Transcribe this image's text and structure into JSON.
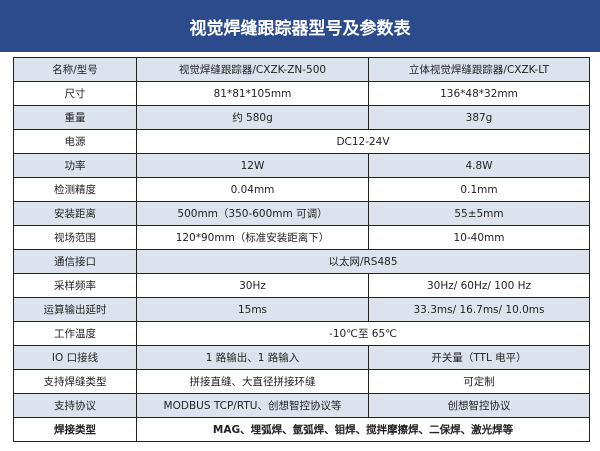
{
  "header": {
    "title": "视觉焊缝跟踪器型号及参数表"
  },
  "table": {
    "rows": [
      [
        "名称/型号",
        "视觉焊缝跟踪器/CXZK-ZN-500",
        "立体视觉焊缝跟踪器/CXZK-LT"
      ],
      [
        "尺寸",
        "81*81*105mm",
        "136*48*32mm"
      ],
      [
        "重量",
        "约 580g",
        "387g"
      ],
      [
        "电源",
        "DC12-24V"
      ],
      [
        "功率",
        "12W",
        "4.8W"
      ],
      [
        "检测精度",
        "0.04mm",
        "0.1mm"
      ],
      [
        "安装距离",
        "500mm（350-600mm 可调）",
        "55±5mm"
      ],
      [
        "视场范围",
        "120*90mm（标准安装距离下）",
        "10-40mm"
      ],
      [
        "通信接口",
        "以太网/RS485"
      ],
      [
        "采样频率",
        "30Hz",
        "30Hz/ 60Hz/ 100 Hz"
      ],
      [
        "运算输出延时",
        "15ms",
        "33.3ms/ 16.7ms/ 10.0ms"
      ],
      [
        "工作温度",
        "-10℃至 65℃"
      ],
      [
        "IO 口接线",
        "1 路输出、1 路输入",
        "开关量（TTL 电平）"
      ],
      [
        "支持焊缝类型",
        "拼接直缝、大直径拼接环缝",
        "可定制"
      ],
      [
        "支持协议",
        "MODBUS TCP/RTU、创想智控协议等",
        "创想智控协议"
      ],
      [
        "焊接类型",
        "MAG、埋弧焊、氩弧焊、钼焊、搅拌摩擦焊、二保焊、激光焊等"
      ]
    ]
  }
}
